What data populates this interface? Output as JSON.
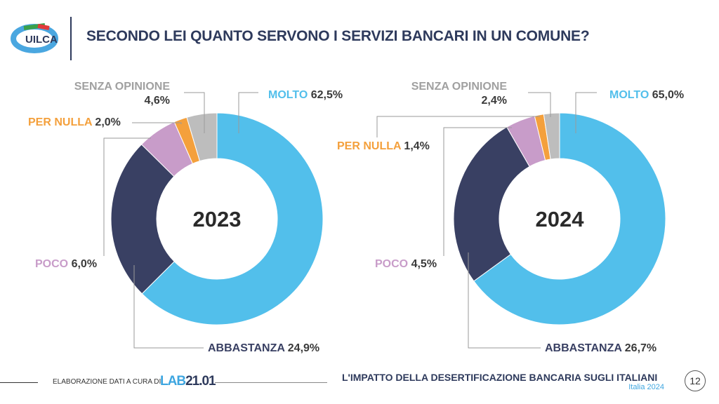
{
  "header": {
    "title": "SECONDO LEI QUANTO SERVONO I SERVIZI BANCARI IN UN COMUNE?",
    "logo_text": "UILCA"
  },
  "chart_data": [
    {
      "type": "pie",
      "donut": true,
      "center_label": "2023",
      "categories": [
        "MOLTO",
        "ABBASTANZA",
        "POCO",
        "PER NULLA",
        "SENZA OPINIONE"
      ],
      "values": [
        62.5,
        24.9,
        6.0,
        2.0,
        4.6
      ],
      "value_labels": [
        "62,5%",
        "24,9%",
        "6,0%",
        "2,0%",
        "4,6%"
      ],
      "colors": [
        "#52bfeb",
        "#394063",
        "#c89cc9",
        "#f4a03c",
        "#bdbdbd"
      ]
    },
    {
      "type": "pie",
      "donut": true,
      "center_label": "2024",
      "categories": [
        "MOLTO",
        "ABBASTANZA",
        "POCO",
        "PER NULLA",
        "SENZA OPINIONE"
      ],
      "values": [
        65.0,
        26.7,
        4.5,
        1.4,
        2.4
      ],
      "value_labels": [
        "65,0%",
        "26,7%",
        "4,5%",
        "1,4%",
        "2,4%"
      ],
      "colors": [
        "#52bfeb",
        "#394063",
        "#c89cc9",
        "#f4a03c",
        "#bdbdbd"
      ]
    }
  ],
  "footer": {
    "credit": "ELABORAZIONE DATI A CURA DI",
    "lab_a": "LAB",
    "lab_b": "21.01",
    "report": "L'IMPATTO DELLA DESERTIFICAZIONE BANCARIA SUGLI ITALIANI",
    "sub": "Italia 2024",
    "page": "12"
  }
}
